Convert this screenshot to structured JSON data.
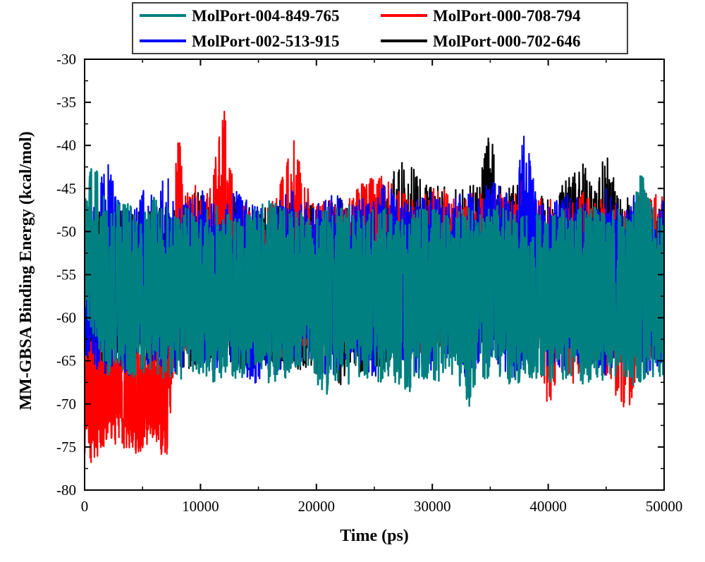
{
  "chart_data": {
    "type": "line",
    "title": "",
    "xlabel": "Time (ps)",
    "ylabel": "MM-GBSA Binding Energy (kcal/mol)",
    "xlim": [
      0,
      50000
    ],
    "ylim": [
      -80,
      -30
    ],
    "xticks": [
      0,
      10000,
      20000,
      30000,
      40000,
      50000
    ],
    "yticks": [
      -30,
      -35,
      -40,
      -45,
      -50,
      -55,
      -60,
      -65,
      -70,
      -75,
      -80
    ],
    "grid": false,
    "legend_position": "top-center",
    "series": [
      {
        "name": "MolPort-000-702-646",
        "color": "#000000",
        "x": [
          0,
          1000,
          2000,
          3000,
          4000,
          5000,
          6000,
          7000,
          8000,
          9000,
          10000,
          11000,
          12000,
          13000,
          14000,
          15000,
          16000,
          17000,
          18000,
          19000,
          20000,
          21000,
          22000,
          23000,
          24000,
          25000,
          26000,
          27000,
          28000,
          29000,
          30000,
          31000,
          32000,
          33000,
          34000,
          35000,
          36000,
          37000,
          38000,
          39000,
          40000,
          41000,
          42000,
          43000,
          44000,
          45000,
          46000,
          47000,
          48000,
          49000,
          50000
        ],
        "y": [
          -60,
          -59,
          -58,
          -57,
          -58,
          -57,
          -57,
          -56,
          -57,
          -56,
          -57,
          -56,
          -56,
          -57,
          -56,
          -57,
          -57,
          -57,
          -56,
          -57,
          -57,
          -56,
          -57,
          -57,
          -56,
          -56,
          -57,
          -55,
          -54,
          -55,
          -55,
          -54,
          -55,
          -55,
          -54,
          -53,
          -54,
          -55,
          -54,
          -55,
          -55,
          -53,
          -52,
          -52,
          -53,
          -52,
          -53,
          -54,
          -55,
          -56,
          -56
        ],
        "upper": [
          -49,
          -48,
          -47,
          -47,
          -48,
          -47,
          -46,
          -47,
          -47,
          -46,
          -45,
          -47,
          -46,
          -46,
          -47,
          -47,
          -47,
          -46,
          -47,
          -46,
          -46,
          -47,
          -46,
          -47,
          -46,
          -46,
          -45,
          -42,
          -41,
          -44,
          -45,
          -44,
          -45,
          -45,
          -44,
          -38,
          -45,
          -44,
          -43,
          -45,
          -46,
          -45,
          -43,
          -42,
          -44,
          -41,
          -45,
          -46,
          -47,
          -48,
          -47
        ],
        "lower": [
          -68,
          -69,
          -69,
          -68,
          -66,
          -66,
          -66,
          -65,
          -66,
          -66,
          -65,
          -66,
          -65,
          -66,
          -66,
          -66,
          -65,
          -66,
          -66,
          -66,
          -67,
          -66,
          -68,
          -66,
          -67,
          -66,
          -66,
          -64,
          -63,
          -64,
          -64,
          -63,
          -64,
          -64,
          -64,
          -63,
          -63,
          -64,
          -63,
          -63,
          -62,
          -62,
          -61,
          -61,
          -62,
          -61,
          -62,
          -63,
          -63,
          -64,
          -64
        ]
      },
      {
        "name": "MolPort-000-708-794",
        "color": "#ff0000",
        "x": [
          0,
          1000,
          2000,
          3000,
          4000,
          5000,
          6000,
          7000,
          8000,
          9000,
          10000,
          11000,
          12000,
          13000,
          14000,
          15000,
          16000,
          17000,
          18000,
          19000,
          20000,
          21000,
          22000,
          23000,
          24000,
          25000,
          26000,
          27000,
          28000,
          29000,
          30000,
          31000,
          32000,
          33000,
          34000,
          35000,
          36000,
          37000,
          38000,
          39000,
          40000,
          41000,
          42000,
          43000,
          44000,
          45000,
          46000,
          47000,
          48000,
          49000,
          50000
        ],
        "y": [
          -69,
          -70,
          -69,
          -69,
          -70,
          -70,
          -69,
          -68,
          -57,
          -56,
          -55,
          -55,
          -54,
          -55,
          -56,
          -56,
          -56,
          -55,
          -54,
          -55,
          -56,
          -57,
          -56,
          -55,
          -56,
          -55,
          -55,
          -56,
          -56,
          -56,
          -55,
          -56,
          -56,
          -56,
          -56,
          -56,
          -55,
          -56,
          -55,
          -56,
          -56,
          -56,
          -56,
          -55,
          -55,
          -55,
          -56,
          -56,
          -55,
          -55,
          -55
        ],
        "upper": [
          -62,
          -62,
          -63,
          -63,
          -63,
          -62,
          -62,
          -62,
          -38,
          -45,
          -43,
          -44,
          -35,
          -46,
          -47,
          -48,
          -46,
          -44,
          -39,
          -44,
          -46,
          -46,
          -47,
          -46,
          -44,
          -43,
          -44,
          -45,
          -46,
          -46,
          -45,
          -45,
          -46,
          -46,
          -45,
          -46,
          -44,
          -46,
          -43,
          -46,
          -46,
          -47,
          -46,
          -45,
          -46,
          -46,
          -47,
          -48,
          -45,
          -46,
          -45
        ],
        "lower": [
          -77,
          -77,
          -74,
          -75,
          -76,
          -76,
          -74,
          -77,
          -65,
          -64,
          -63,
          -63,
          -63,
          -63,
          -63,
          -64,
          -64,
          -65,
          -64,
          -64,
          -63,
          -63,
          -63,
          -63,
          -64,
          -63,
          -63,
          -64,
          -64,
          -64,
          -63,
          -64,
          -64,
          -64,
          -64,
          -63,
          -63,
          -64,
          -64,
          -64,
          -71,
          -66,
          -68,
          -66,
          -66,
          -67,
          -70,
          -71,
          -66,
          -65,
          -64
        ]
      },
      {
        "name": "MolPort-002-513-915",
        "color": "#0000ff",
        "x": [
          0,
          1000,
          2000,
          3000,
          4000,
          5000,
          6000,
          7000,
          8000,
          9000,
          10000,
          11000,
          12000,
          13000,
          14000,
          15000,
          16000,
          17000,
          18000,
          19000,
          20000,
          21000,
          22000,
          23000,
          24000,
          25000,
          26000,
          27000,
          28000,
          29000,
          30000,
          31000,
          32000,
          33000,
          34000,
          35000,
          36000,
          37000,
          38000,
          39000,
          40000,
          41000,
          42000,
          43000,
          44000,
          45000,
          46000,
          47000,
          48000,
          49000,
          50000
        ],
        "y": [
          -57,
          -57,
          -56,
          -57,
          -57,
          -56,
          -56,
          -57,
          -56,
          -57,
          -56,
          -56,
          -57,
          -56,
          -56,
          -57,
          -57,
          -56,
          -56,
          -57,
          -56,
          -56,
          -57,
          -56,
          -56,
          -57,
          -56,
          -56,
          -57,
          -56,
          -56,
          -57,
          -56,
          -56,
          -57,
          -56,
          -56,
          -57,
          -56,
          -56,
          -57,
          -56,
          -56,
          -57,
          -56,
          -56,
          -57,
          -56,
          -56,
          -57,
          -56
        ],
        "upper": [
          -50,
          -45,
          -42,
          -46,
          -47,
          -45,
          -46,
          -43,
          -47,
          -46,
          -45,
          -46,
          -47,
          -44,
          -46,
          -47,
          -48,
          -46,
          -45,
          -46,
          -47,
          -45,
          -46,
          -47,
          -45,
          -46,
          -44,
          -46,
          -47,
          -46,
          -45,
          -47,
          -46,
          -45,
          -46,
          -44,
          -45,
          -46,
          -38,
          -46,
          -47,
          -46,
          -45,
          -47,
          -46,
          -45,
          -47,
          -46,
          -45,
          -47,
          -46
        ],
        "lower": [
          -65,
          -66,
          -67,
          -66,
          -67,
          -66,
          -65,
          -66,
          -67,
          -65,
          -66,
          -67,
          -65,
          -66,
          -67,
          -68,
          -66,
          -67,
          -66,
          -65,
          -66,
          -67,
          -66,
          -65,
          -66,
          -67,
          -66,
          -65,
          -66,
          -67,
          -66,
          -65,
          -66,
          -67,
          -66,
          -65,
          -66,
          -67,
          -66,
          -65,
          -66,
          -67,
          -66,
          -65,
          -66,
          -67,
          -66,
          -65,
          -66,
          -67,
          -66
        ]
      },
      {
        "name": "MolPort-004-849-765",
        "color": "#008080",
        "x": [
          0,
          1000,
          2000,
          3000,
          4000,
          5000,
          6000,
          7000,
          8000,
          9000,
          10000,
          11000,
          12000,
          13000,
          14000,
          15000,
          16000,
          17000,
          18000,
          19000,
          20000,
          21000,
          22000,
          23000,
          24000,
          25000,
          26000,
          27000,
          28000,
          29000,
          30000,
          31000,
          32000,
          33000,
          34000,
          35000,
          36000,
          37000,
          38000,
          39000,
          40000,
          41000,
          42000,
          43000,
          44000,
          45000,
          46000,
          47000,
          48000,
          49000,
          50000
        ],
        "y": [
          -52,
          -57,
          -58,
          -58,
          -58,
          -58,
          -58,
          -58,
          -58,
          -58,
          -58,
          -58,
          -58,
          -58,
          -58,
          -58,
          -58,
          -58,
          -58,
          -58,
          -58,
          -58,
          -58,
          -58,
          -58,
          -58,
          -58,
          -58,
          -58,
          -58,
          -58,
          -58,
          -58,
          -58,
          -58,
          -58,
          -58,
          -58,
          -58,
          -58,
          -58,
          -58,
          -58,
          -58,
          -58,
          -58,
          -58,
          -58,
          -58,
          -58,
          -58
        ],
        "upper": [
          -43,
          -42,
          -48,
          -46,
          -47,
          -48,
          -46,
          -47,
          -48,
          -47,
          -48,
          -47,
          -47,
          -48,
          -48,
          -47,
          -46,
          -47,
          -47,
          -48,
          -48,
          -47,
          -47,
          -47,
          -48,
          -47,
          -47,
          -48,
          -48,
          -47,
          -47,
          -48,
          -48,
          -47,
          -48,
          -47,
          -47,
          -48,
          -47,
          -47,
          -48,
          -47,
          -48,
          -47,
          -47,
          -48,
          -47,
          -48,
          -43,
          -47,
          -48
        ],
        "lower": [
          -60,
          -63,
          -67,
          -66,
          -67,
          -67,
          -67,
          -67,
          -68,
          -67,
          -67,
          -68,
          -67,
          -67,
          -67,
          -66,
          -68,
          -67,
          -67,
          -66,
          -68,
          -69,
          -67,
          -68,
          -67,
          -68,
          -67,
          -68,
          -69,
          -67,
          -68,
          -67,
          -68,
          -71,
          -67,
          -68,
          -67,
          -68,
          -67,
          -67,
          -68,
          -68,
          -67,
          -68,
          -67,
          -68,
          -67,
          -68,
          -68,
          -67,
          -67
        ]
      }
    ],
    "legend": [
      {
        "name": "MolPort-004-849-765",
        "color": "#008080"
      },
      {
        "name": "MolPort-000-708-794",
        "color": "#ff0000"
      },
      {
        "name": "MolPort-002-513-915",
        "color": "#0000ff"
      },
      {
        "name": "MolPort-000-702-646",
        "color": "#000000"
      }
    ]
  }
}
